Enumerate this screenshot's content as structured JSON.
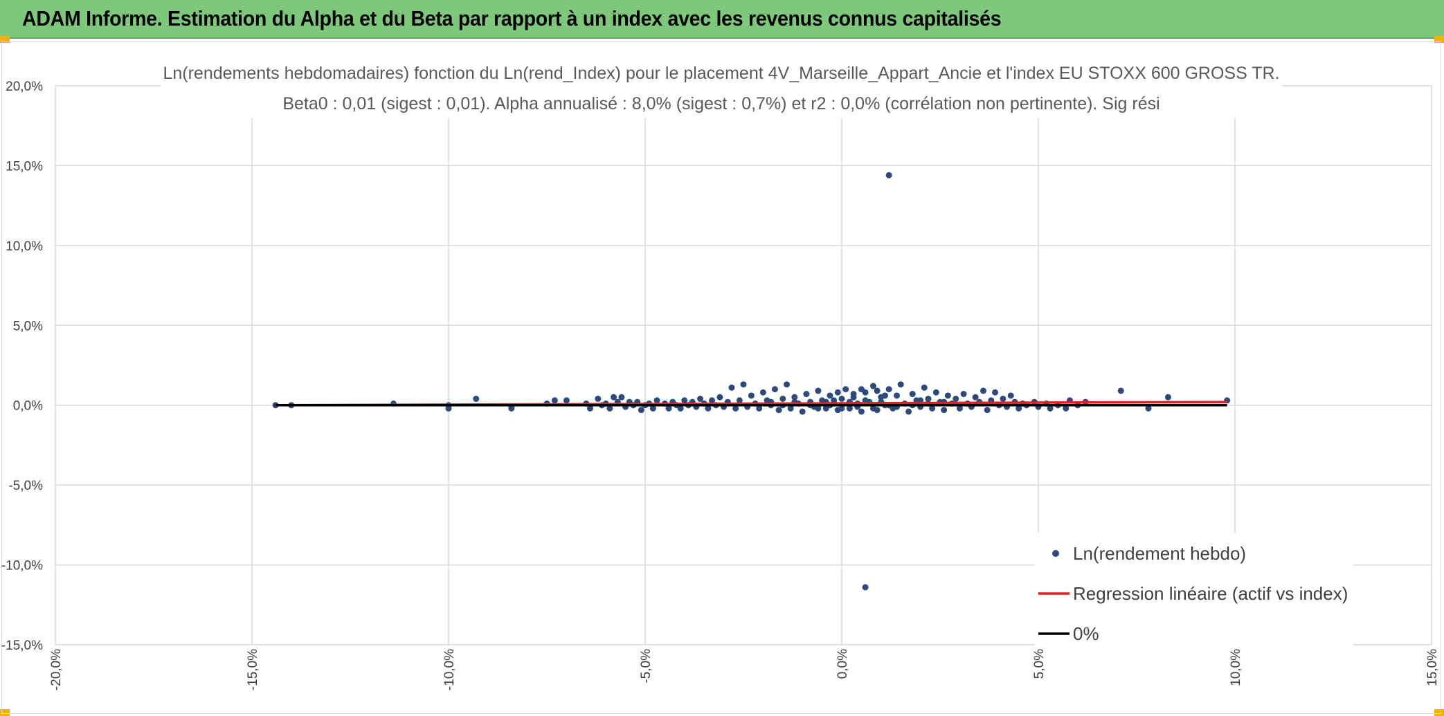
{
  "banner": {
    "title": "ADAM Informe. Estimation du Alpha et du Beta par rapport à un index avec les revenus connus capitalisés"
  },
  "colors": {
    "banner": "#7dc87b",
    "points": "#2e4a7d",
    "regression": "#e02020",
    "zero_line": "#000000",
    "grid": "#d9d9d9"
  },
  "chart_data": {
    "type": "scatter",
    "title_line1": "Ln(rendements hebdomadaires) fonction du Ln(rend_Index) pour le placement 4V_Marseille_Appart_Ancie et l'index EU STOXX 600 GROSS TR.",
    "title_line2": "Beta0 : 0,01 (sigest : 0,01). Alpha annualisé : 8,0% (sigest : 0,7%) et r2 : 0,0% (corrélation non pertinente). Sig rési",
    "xlim": [
      -0.2,
      0.15
    ],
    "ylim": [
      -0.15,
      0.2
    ],
    "x_ticks": [
      -0.2,
      -0.15,
      -0.1,
      -0.05,
      0.0,
      0.05,
      0.1,
      0.15
    ],
    "x_tick_labels": [
      "-20,0%",
      "-15,0%",
      "-10,0%",
      "-5,0%",
      "0,0%",
      "5,0%",
      "10,0%",
      "15,0%"
    ],
    "y_ticks": [
      0.2,
      0.15,
      0.1,
      0.05,
      0.0,
      -0.05,
      -0.1,
      -0.15
    ],
    "y_tick_labels": [
      "20,0%",
      "15,0%",
      "10,0%",
      "5,0%",
      "0,0%",
      "-5,0%",
      "-10,0%",
      "-15,0%"
    ],
    "grid": true,
    "legend_position": "bottom-right",
    "series": [
      {
        "name": "Ln(rendement hebdo)",
        "kind": "points",
        "points": [
          [
            -0.144,
            0.0
          ],
          [
            -0.14,
            0.0
          ],
          [
            -0.114,
            0.001
          ],
          [
            -0.1,
            -0.002
          ],
          [
            -0.1,
            0.0
          ],
          [
            -0.093,
            0.004
          ],
          [
            -0.084,
            -0.002
          ],
          [
            -0.084,
            -0.001
          ],
          [
            -0.075,
            0.001
          ],
          [
            -0.073,
            0.003
          ],
          [
            -0.07,
            0.003
          ],
          [
            -0.065,
            0.001
          ],
          [
            -0.064,
            -0.002
          ],
          [
            -0.062,
            0.004
          ],
          [
            -0.061,
            0.0
          ],
          [
            -0.06,
            0.001
          ],
          [
            -0.059,
            -0.002
          ],
          [
            -0.058,
            0.005
          ],
          [
            -0.057,
            0.002
          ],
          [
            -0.056,
            0.005
          ],
          [
            -0.055,
            -0.001
          ],
          [
            -0.054,
            0.002
          ],
          [
            -0.053,
            0.0
          ],
          [
            -0.052,
            0.002
          ],
          [
            -0.051,
            -0.003
          ],
          [
            -0.05,
            0.0
          ],
          [
            -0.049,
            0.001
          ],
          [
            -0.048,
            -0.002
          ],
          [
            -0.047,
            0.003
          ],
          [
            -0.045,
            0.001
          ],
          [
            -0.044,
            -0.002
          ],
          [
            -0.043,
            0.002
          ],
          [
            -0.042,
            0.0
          ],
          [
            -0.041,
            -0.002
          ],
          [
            -0.04,
            0.003
          ],
          [
            -0.039,
            0.0
          ],
          [
            -0.038,
            0.002
          ],
          [
            -0.037,
            -0.001
          ],
          [
            -0.036,
            0.004
          ],
          [
            -0.035,
            0.001
          ],
          [
            -0.034,
            -0.002
          ],
          [
            -0.033,
            0.003
          ],
          [
            -0.032,
            0.0
          ],
          [
            -0.031,
            0.005
          ],
          [
            -0.03,
            -0.001
          ],
          [
            -0.029,
            0.002
          ],
          [
            -0.028,
            0.011
          ],
          [
            -0.027,
            -0.002
          ],
          [
            -0.026,
            0.003
          ],
          [
            -0.025,
            0.013
          ],
          [
            -0.024,
            -0.001
          ],
          [
            -0.023,
            0.006
          ],
          [
            -0.022,
            0.001
          ],
          [
            -0.021,
            -0.002
          ],
          [
            -0.02,
            0.008
          ],
          [
            -0.019,
            0.003
          ],
          [
            -0.018,
            0.0
          ],
          [
            -0.017,
            0.01
          ],
          [
            -0.016,
            -0.003
          ],
          [
            -0.015,
            0.004
          ],
          [
            -0.014,
            0.013
          ],
          [
            -0.013,
            -0.002
          ],
          [
            -0.012,
            0.005
          ],
          [
            -0.011,
            0.001
          ],
          [
            -0.01,
            -0.004
          ],
          [
            -0.009,
            0.007
          ],
          [
            -0.008,
            0.002
          ],
          [
            -0.007,
            -0.001
          ],
          [
            -0.006,
            0.009
          ],
          [
            -0.005,
            0.003
          ],
          [
            -0.004,
            -0.002
          ],
          [
            -0.003,
            0.006
          ],
          [
            -0.002,
            0.001
          ],
          [
            -0.001,
            -0.003
          ],
          [
            0.0,
            0.004
          ],
          [
            0.001,
            0.01
          ],
          [
            0.002,
            -0.002
          ],
          [
            0.003,
            0.005
          ],
          [
            0.004,
            0.001
          ],
          [
            0.005,
            -0.004
          ],
          [
            0.006,
            0.008
          ],
          [
            0.007,
            0.002
          ],
          [
            0.008,
            0.012
          ],
          [
            0.009,
            -0.003
          ],
          [
            0.01,
            0.005
          ],
          [
            0.011,
            0.0
          ],
          [
            0.012,
            0.01
          ],
          [
            0.013,
            -0.002
          ],
          [
            0.014,
            0.006
          ],
          [
            0.015,
            0.013
          ],
          [
            0.016,
            0.001
          ],
          [
            0.017,
            -0.004
          ],
          [
            0.018,
            0.007
          ],
          [
            0.019,
            0.003
          ],
          [
            0.02,
            -0.001
          ],
          [
            0.021,
            0.011
          ],
          [
            0.022,
            0.004
          ],
          [
            0.023,
            -0.002
          ],
          [
            0.024,
            0.008
          ],
          [
            0.025,
            0.002
          ],
          [
            0.026,
            -0.003
          ],
          [
            0.027,
            0.006
          ],
          [
            0.028,
            0.001
          ],
          [
            0.029,
            0.004
          ],
          [
            0.03,
            -0.002
          ],
          [
            0.031,
            0.007
          ],
          [
            0.032,
            0.001
          ],
          [
            0.033,
            -0.001
          ],
          [
            0.034,
            0.005
          ],
          [
            0.035,
            0.002
          ],
          [
            0.036,
            0.009
          ],
          [
            0.037,
            -0.003
          ],
          [
            0.038,
            0.003
          ],
          [
            0.039,
            0.008
          ],
          [
            0.04,
            0.0
          ],
          [
            0.041,
            0.004
          ],
          [
            0.042,
            -0.001
          ],
          [
            0.043,
            0.006
          ],
          [
            0.044,
            0.002
          ],
          [
            0.045,
            -0.002
          ],
          [
            0.046,
            0.001
          ],
          [
            0.047,
            0.0
          ],
          [
            0.049,
            0.002
          ],
          [
            0.05,
            -0.001
          ],
          [
            0.052,
            0.001
          ],
          [
            0.053,
            -0.002
          ],
          [
            0.055,
            0.0
          ],
          [
            0.057,
            -0.002
          ],
          [
            0.058,
            0.003
          ],
          [
            0.06,
            0.0
          ],
          [
            0.062,
            0.002
          ],
          [
            0.071,
            0.009
          ],
          [
            0.078,
            -0.002
          ],
          [
            0.083,
            0.005
          ],
          [
            0.098,
            0.003
          ],
          [
            -0.003,
            0.0
          ],
          [
            -0.002,
            0.003
          ],
          [
            0.0,
            -0.002
          ],
          [
            0.002,
            0.002
          ],
          [
            0.004,
            -0.001
          ],
          [
            0.006,
            0.003
          ],
          [
            0.008,
            -0.002
          ],
          [
            0.01,
            0.002
          ],
          [
            0.012,
            0.0
          ],
          [
            0.014,
            -0.001
          ],
          [
            -0.008,
            0.0
          ],
          [
            -0.006,
            -0.002
          ],
          [
            -0.004,
            0.002
          ],
          [
            0.018,
            0.0
          ],
          [
            0.02,
            0.003
          ],
          [
            -0.012,
            0.002
          ],
          [
            -0.015,
            0.0
          ],
          [
            -0.018,
            0.002
          ],
          [
            0.022,
            0.001
          ],
          [
            0.026,
            0.002
          ],
          [
            0.003,
            0.007
          ],
          [
            0.005,
            0.01
          ],
          [
            0.009,
            0.009
          ],
          [
            0.011,
            0.006
          ],
          [
            -0.001,
            0.008
          ],
          [
            0.012,
            0.144
          ],
          [
            0.006,
            -0.114
          ]
        ]
      },
      {
        "name": "Regression linéaire (actif vs index)",
        "kind": "line",
        "points": [
          [
            -0.144,
            0.0
          ],
          [
            0.098,
            0.002
          ]
        ]
      },
      {
        "name": "0%",
        "kind": "line",
        "points": [
          [
            -0.144,
            0.0
          ],
          [
            0.098,
            0.0
          ]
        ]
      }
    ]
  }
}
